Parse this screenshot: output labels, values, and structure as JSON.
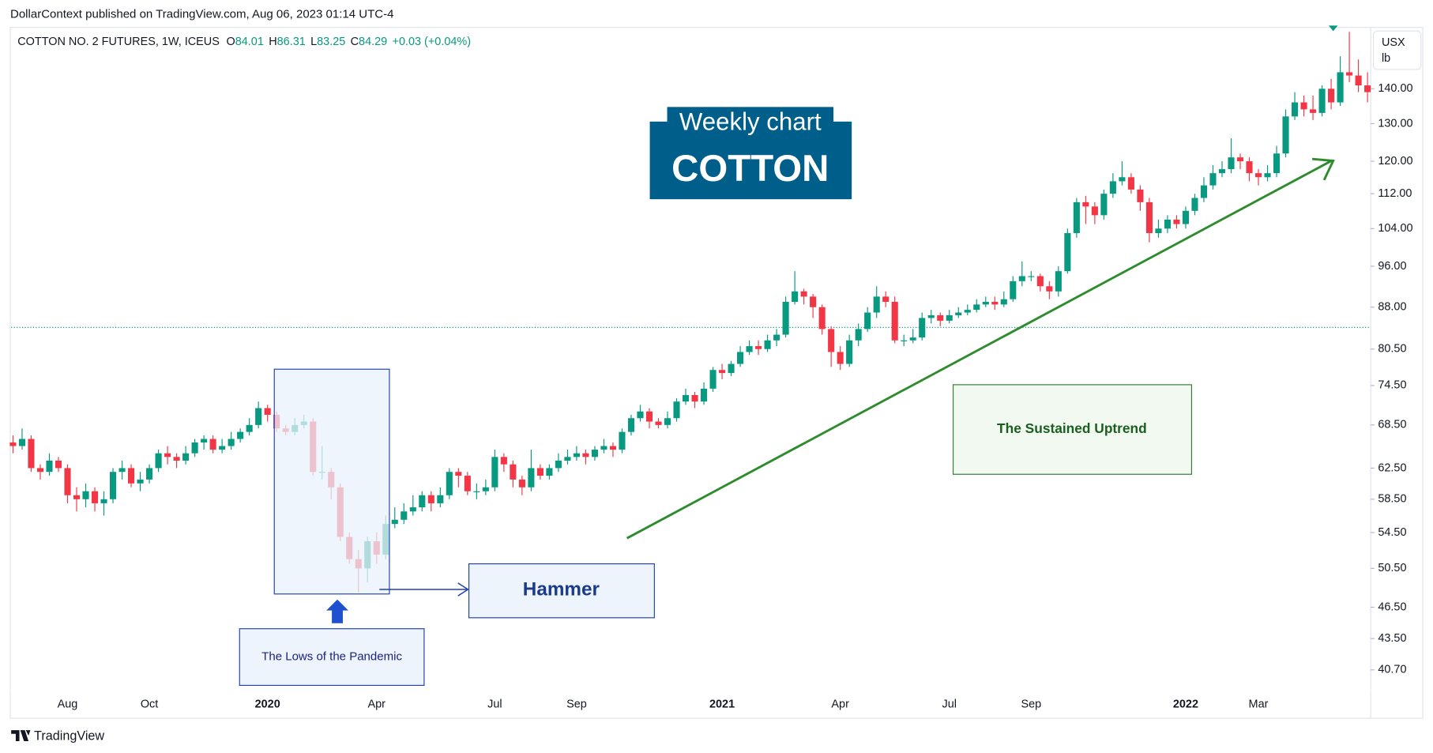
{
  "header": {
    "publisher": "DollarContext published on TradingView.com, Aug 06, 2023 01:14 UTC-4",
    "brand": "TradingView"
  },
  "chart_data": {
    "type": "candlestick",
    "legend": {
      "symbol": "COTTON NO. 2 FUTURES, 1W, ICEUS",
      "items": [
        {
          "label": "O",
          "value": 84.01
        },
        {
          "label": "H",
          "value": 86.31
        },
        {
          "label": "L",
          "value": 83.25
        },
        {
          "label": "C",
          "value": 84.29
        }
      ],
      "change": "+0.03 (+0.04%)"
    },
    "unit": [
      "USX",
      "lb"
    ],
    "log_scale": true,
    "up_color": "#089981",
    "down_color": "#f23645",
    "ylim": [
      39,
      159.5
    ],
    "yticks": [
      {
        "value": 140,
        "label": "140.00"
      },
      {
        "value": 130,
        "label": "130.00"
      },
      {
        "value": 120,
        "label": "120.00"
      },
      {
        "value": 112,
        "label": "112.00"
      },
      {
        "value": 104,
        "label": "104.00"
      },
      {
        "value": 96,
        "label": "96.00"
      },
      {
        "value": 88,
        "label": "88.00"
      },
      {
        "value": 80.5,
        "label": "80.50"
      },
      {
        "value": 74.5,
        "label": "74.50"
      },
      {
        "value": 68.5,
        "label": "68.50"
      },
      {
        "value": 62.5,
        "label": "62.50"
      },
      {
        "value": 58.5,
        "label": "58.50"
      },
      {
        "value": 54.5,
        "label": "54.50"
      },
      {
        "value": 50.5,
        "label": "50.50"
      },
      {
        "value": 46.5,
        "label": "46.50"
      },
      {
        "value": 43.5,
        "label": "43.50"
      },
      {
        "value": 40.7,
        "label": "40.70"
      }
    ],
    "categories": [
      null,
      null,
      null,
      null,
      null,
      null,
      "Aug",
      null,
      null,
      null,
      null,
      null,
      null,
      null,
      null,
      "Oct",
      null,
      null,
      null,
      null,
      null,
      null,
      null,
      null,
      null,
      null,
      null,
      null,
      "2020",
      null,
      null,
      null,
      null,
      null,
      null,
      null,
      null,
      null,
      null,
      null,
      "Apr",
      null,
      null,
      null,
      null,
      null,
      null,
      null,
      null,
      null,
      null,
      null,
      null,
      "Jul",
      null,
      null,
      null,
      null,
      null,
      null,
      null,
      null,
      "Sep",
      null,
      null,
      null,
      null,
      null,
      null,
      null,
      null,
      null,
      null,
      null,
      null,
      null,
      null,
      null,
      "2021",
      null,
      null,
      null,
      null,
      null,
      null,
      null,
      null,
      null,
      null,
      null,
      null,
      "Apr",
      null,
      null,
      null,
      null,
      null,
      null,
      null,
      null,
      null,
      null,
      null,
      "Jul",
      null,
      null,
      null,
      null,
      null,
      null,
      null,
      null,
      "Sep",
      null,
      null,
      null,
      null,
      null,
      null,
      null,
      null,
      null,
      null,
      null,
      null,
      null,
      null,
      null,
      null,
      "2022",
      null,
      null,
      null,
      null,
      null,
      null,
      null,
      "Mar",
      null,
      null,
      null,
      null,
      null,
      null,
      null,
      null,
      null,
      null,
      null,
      null
    ],
    "open": [
      66,
      65.5,
      66.5,
      62.5,
      62,
      63.5,
      62.5,
      59,
      58.5,
      59.5,
      58,
      58.5,
      62,
      62.5,
      60.5,
      61,
      62.5,
      64.5,
      64,
      63.5,
      64.5,
      66,
      66.5,
      65,
      65.5,
      66.5,
      67.5,
      68.5,
      71,
      70,
      68,
      67.5,
      68.5,
      69,
      62,
      62,
      60,
      54,
      51.5,
      50.5,
      53.5,
      52,
      55.5,
      56,
      57,
      57.5,
      59,
      58,
      59,
      62,
      61.5,
      59.5,
      59.5,
      60,
      64,
      63,
      61,
      60,
      62.5,
      61.5,
      62.5,
      63.5,
      64,
      64.5,
      64,
      65,
      65.5,
      65,
      67.5,
      69.5,
      70.5,
      69,
      68.5,
      69.5,
      72,
      73,
      72,
      74,
      77,
      76.5,
      78,
      80,
      81,
      80.5,
      82,
      83,
      89,
      91,
      90,
      88,
      84,
      80,
      78,
      82,
      84,
      87,
      90,
      89,
      82,
      82,
      82.5,
      86,
      86.5,
      85.5,
      86.5,
      87,
      87.5,
      88.5,
      89,
      88.5,
      89.5,
      93,
      94,
      94,
      92,
      91,
      95,
      103,
      110,
      109,
      107,
      112,
      115,
      116,
      113,
      110,
      103,
      104,
      106,
      105,
      108,
      111,
      114,
      117,
      118,
      121,
      120,
      117,
      116,
      117,
      122,
      132,
      136,
      134,
      133,
      140,
      136,
      145,
      144,
      141
    ],
    "high": [
      67,
      68,
      67,
      63,
      64.5,
      64,
      63,
      60,
      60.5,
      60,
      59.5,
      62.5,
      63.5,
      63,
      62,
      63,
      65,
      65.5,
      64.5,
      65.5,
      66.5,
      67,
      67,
      66.5,
      67.5,
      68,
      69.5,
      72,
      71.5,
      70.5,
      68.5,
      69.5,
      70,
      69.5,
      65.5,
      62.5,
      60.5,
      54.5,
      52.5,
      54,
      54.5,
      56.5,
      57.5,
      58,
      59,
      59.5,
      59.5,
      60,
      62.5,
      62.5,
      62,
      60.5,
      61,
      65,
      64.5,
      63.5,
      61.5,
      65,
      63,
      63,
      64.5,
      65,
      65.5,
      65,
      65.5,
      66.5,
      66,
      68,
      70,
      71.5,
      71,
      69.5,
      70.5,
      72.5,
      74,
      73.5,
      75,
      77.5,
      78,
      78.5,
      81,
      82,
      82,
      83,
      84,
      90,
      95,
      91.5,
      90.5,
      88.5,
      84.5,
      81,
      83,
      85,
      88,
      92,
      91,
      90,
      83,
      84,
      87,
      87.5,
      87,
      87.5,
      88,
      88.5,
      89.5,
      90,
      90,
      91,
      94,
      97,
      95,
      94.5,
      93,
      96,
      104,
      111,
      111.5,
      110,
      113,
      117,
      120,
      117,
      114,
      111,
      106,
      107,
      107,
      109,
      112,
      116,
      119,
      120,
      126,
      122,
      121,
      118,
      119,
      124,
      134,
      139,
      138,
      138,
      141,
      143,
      150,
      158,
      149,
      145
    ],
    "low": [
      64.5,
      65,
      62,
      61,
      61.5,
      62,
      58,
      57,
      57.5,
      57,
      56.5,
      58,
      61,
      60,
      59.5,
      60.5,
      62,
      63,
      62.5,
      63,
      64,
      65,
      64.5,
      64.5,
      65,
      66,
      67,
      68,
      69,
      67.5,
      67,
      67,
      68,
      61.5,
      61,
      58.5,
      53.5,
      51,
      48,
      49,
      51,
      51.5,
      55,
      55.5,
      56.5,
      57,
      57,
      57.5,
      58.5,
      60,
      59,
      58.5,
      59,
      59.5,
      62,
      60,
      59,
      59.5,
      61,
      61,
      62,
      63,
      63.5,
      63,
      63.5,
      64.5,
      64,
      64.5,
      67,
      69,
      68,
      68,
      68,
      69,
      71.5,
      71,
      71.5,
      73.5,
      75.5,
      76,
      77.5,
      79.5,
      79.5,
      80,
      81,
      82.5,
      88.5,
      88.5,
      86,
      83,
      77.5,
      77,
      77.5,
      81,
      83.5,
      86,
      88,
      81.5,
      81,
      81.5,
      82,
      85,
      84.5,
      85,
      86,
      86.5,
      87,
      88,
      87.5,
      88,
      89,
      92,
      93,
      91,
      89.5,
      90,
      94.5,
      102,
      105,
      105,
      106,
      111,
      114,
      112,
      108,
      101,
      102,
      103,
      104,
      104,
      107,
      110,
      113,
      116,
      117,
      118,
      115,
      114,
      115,
      116,
      121,
      131,
      132,
      131,
      132,
      134,
      135,
      142,
      139,
      136
    ],
    "close": [
      65.5,
      66.5,
      62.5,
      62,
      63.5,
      62.5,
      59,
      58.5,
      59.5,
      58,
      58.5,
      62,
      62.5,
      60.5,
      61,
      62.5,
      64.5,
      64,
      63.5,
      64.5,
      66,
      66.5,
      65,
      65.5,
      66.5,
      67.5,
      68.5,
      71,
      70,
      68,
      67.5,
      68.5,
      69,
      62,
      62,
      60,
      54,
      51.5,
      50.5,
      53.5,
      52,
      55.5,
      56,
      57,
      57.5,
      59,
      58,
      59,
      62,
      61.5,
      59.5,
      59.5,
      60,
      64,
      63,
      61,
      60,
      62.5,
      61.5,
      62.5,
      63.5,
      64,
      64.5,
      64,
      65,
      65.5,
      65,
      67.5,
      69.5,
      70.5,
      69,
      68.5,
      69.5,
      72,
      73,
      72,
      74,
      77,
      76.5,
      78,
      80,
      81,
      80.5,
      82,
      83,
      89,
      91,
      90,
      88,
      84,
      80,
      78,
      82,
      84,
      87,
      90,
      89,
      82,
      82,
      82.5,
      86,
      86.5,
      85.5,
      86.5,
      87,
      87.5,
      88.5,
      89,
      88.5,
      89.5,
      93,
      94,
      94,
      92,
      91,
      95,
      103,
      110,
      109,
      107,
      112,
      115,
      116,
      113,
      110,
      103,
      104,
      106,
      105,
      108,
      111,
      114,
      117,
      118,
      121,
      120,
      117,
      116,
      117,
      122,
      132,
      136,
      134,
      133,
      140,
      136,
      145,
      144,
      141,
      139
    ],
    "annotations": {
      "title_top": "Weekly chart",
      "title_main": "COTTON",
      "hammer": "Hammer",
      "lows": "The Lows of the Pandemic",
      "uptrend": "The Sustained Uptrend"
    }
  }
}
